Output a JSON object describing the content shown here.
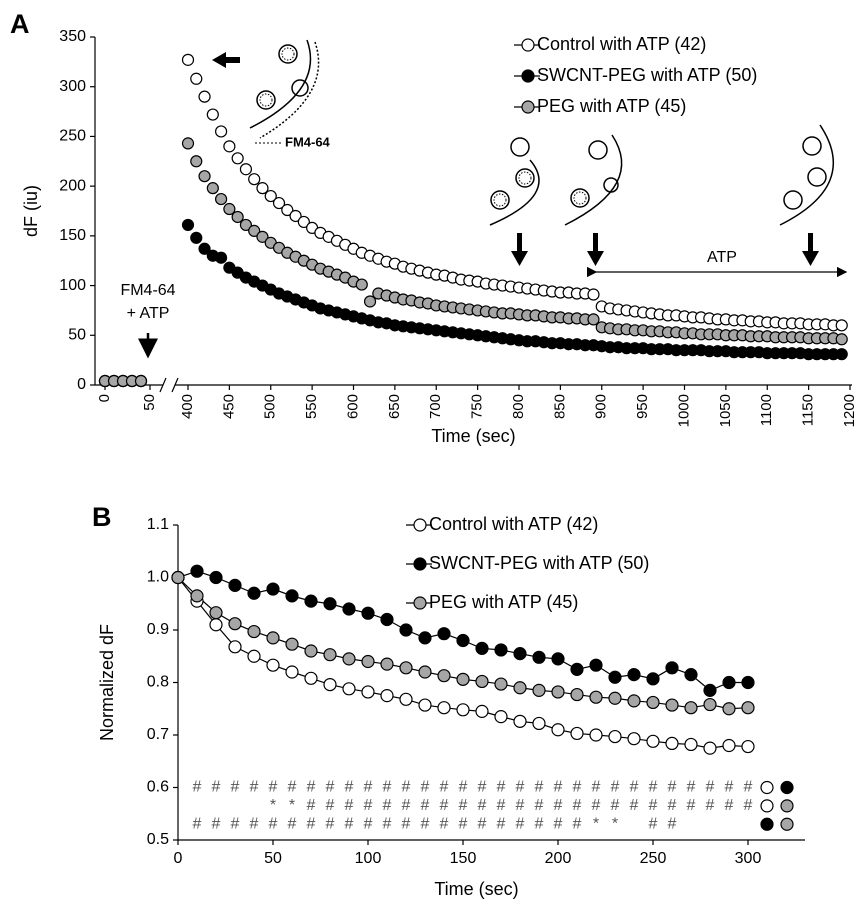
{
  "chart_data": [
    {
      "type": "scatter",
      "panel": "A",
      "xlabel": "Time (sec)",
      "ylabel": "dF (iu)",
      "xlim": [
        0,
        1200
      ],
      "xbreak": [
        50,
        400
      ],
      "xticks": [
        0,
        50,
        400,
        450,
        500,
        550,
        600,
        650,
        700,
        750,
        800,
        850,
        900,
        950,
        1000,
        1050,
        1100,
        1150,
        1200
      ],
      "ylim": [
        0,
        350
      ],
      "yticks": [
        0,
        50,
        100,
        150,
        200,
        250,
        300,
        350
      ],
      "legend": "upper right",
      "lines": false,
      "annotations": [
        "FM4-64",
        [
          "FM4-64",
          "+ ATP"
        ],
        "ATP"
      ],
      "x": [
        0,
        10,
        20,
        30,
        40,
        400,
        410,
        420,
        430,
        440,
        450,
        460,
        470,
        480,
        490,
        500,
        510,
        520,
        530,
        540,
        550,
        560,
        570,
        580,
        590,
        600,
        610,
        620,
        630,
        640,
        650,
        660,
        670,
        680,
        690,
        700,
        710,
        720,
        730,
        740,
        750,
        760,
        770,
        780,
        790,
        800,
        810,
        820,
        830,
        840,
        850,
        860,
        870,
        880,
        890,
        900,
        910,
        920,
        930,
        940,
        950,
        960,
        970,
        980,
        990,
        1000,
        1010,
        1020,
        1030,
        1040,
        1050,
        1060,
        1070,
        1080,
        1090,
        1100,
        1110,
        1120,
        1130,
        1140,
        1150,
        1160,
        1170,
        1180,
        1190
      ],
      "series": [
        {
          "name": "Control with ATP (42)",
          "color": "#ffffff",
          "values": [
            4,
            4,
            4,
            4,
            4,
            327,
            308,
            290,
            272,
            255,
            240,
            228,
            217,
            207,
            198,
            190,
            183,
            176,
            170,
            164,
            158,
            153,
            149,
            145,
            141,
            137,
            133,
            130,
            127,
            124,
            122,
            119,
            117,
            115,
            113,
            111,
            110,
            108,
            106,
            105,
            104,
            102,
            101,
            100,
            99,
            98,
            97,
            96,
            95,
            94,
            93,
            93,
            92,
            92,
            91,
            79,
            77,
            76,
            75,
            74,
            73,
            72,
            71,
            70,
            70,
            69,
            68,
            68,
            67,
            66,
            66,
            65,
            65,
            64,
            64,
            63,
            63,
            62,
            62,
            62,
            61,
            61,
            61,
            60,
            60
          ]
        },
        {
          "name": "SWCNT-PEG with ATP (50)",
          "color": "#000000",
          "values": [
            4,
            4,
            4,
            4,
            4,
            161,
            148,
            137,
            130,
            128,
            118,
            113,
            108,
            104,
            100,
            96,
            92,
            89,
            86,
            83,
            80,
            77,
            75,
            73,
            71,
            69,
            67,
            65,
            63,
            62,
            60,
            59,
            58,
            57,
            56,
            55,
            54,
            53,
            52,
            51,
            50,
            49,
            48,
            47,
            46,
            45,
            44,
            44,
            43,
            42,
            42,
            41,
            41,
            40,
            40,
            39,
            38,
            38,
            37,
            37,
            37,
            36,
            36,
            36,
            35,
            35,
            35,
            35,
            34,
            34,
            34,
            33,
            33,
            33,
            33,
            32,
            32,
            32,
            32,
            32,
            31,
            31,
            31,
            31,
            31
          ]
        },
        {
          "name": "PEG with ATP (45)",
          "color": "#a6a6a6",
          "values": [
            4,
            4,
            4,
            4,
            4,
            243,
            225,
            210,
            198,
            187,
            177,
            169,
            161,
            155,
            149,
            143,
            138,
            133,
            129,
            125,
            121,
            117,
            114,
            111,
            108,
            104,
            101,
            84,
            92,
            90,
            88,
            86,
            85,
            83,
            82,
            80,
            79,
            78,
            77,
            76,
            75,
            74,
            73,
            72,
            72,
            71,
            70,
            70,
            69,
            68,
            68,
            67,
            67,
            66,
            66,
            58,
            57,
            56,
            56,
            55,
            55,
            54,
            54,
            53,
            53,
            52,
            52,
            51,
            51,
            51,
            50,
            50,
            50,
            49,
            49,
            49,
            48,
            48,
            48,
            48,
            47,
            47,
            47,
            47,
            46
          ]
        }
      ]
    },
    {
      "type": "line",
      "panel": "B",
      "xlabel": "Time (sec)",
      "ylabel": "Normalized dF",
      "xlim": [
        0,
        330
      ],
      "xticks": [
        0,
        50,
        100,
        150,
        200,
        250,
        300
      ],
      "ylim": [
        0.5,
        1.1
      ],
      "yticks": [
        0.5,
        0.6,
        0.7,
        0.8,
        0.9,
        {
          "value": 1,
          "label": "1.0"
        },
        1.1
      ],
      "legend": "upper center",
      "lines": true,
      "x": [
        0,
        10,
        20,
        30,
        40,
        50,
        60,
        70,
        80,
        90,
        100,
        110,
        120,
        130,
        140,
        150,
        160,
        170,
        180,
        190,
        200,
        210,
        220,
        230,
        240,
        250,
        260,
        270,
        280,
        290,
        300
      ],
      "series": [
        {
          "name": "Control with ATP (42)",
          "color": "#ffffff",
          "values": [
            1.0,
            0.955,
            0.91,
            0.868,
            0.85,
            0.833,
            0.82,
            0.808,
            0.796,
            0.788,
            0.782,
            0.775,
            0.768,
            0.757,
            0.752,
            0.748,
            0.745,
            0.735,
            0.726,
            0.722,
            0.71,
            0.703,
            0.7,
            0.697,
            0.693,
            0.688,
            0.684,
            0.682,
            0.675,
            0.68,
            0.678
          ]
        },
        {
          "name": "SWCNT-PEG with ATP (50)",
          "color": "#000000",
          "values": [
            1.0,
            1.012,
            1.0,
            0.985,
            0.97,
            0.978,
            0.965,
            0.955,
            0.95,
            0.94,
            0.932,
            0.92,
            0.9,
            0.885,
            0.893,
            0.88,
            0.865,
            0.862,
            0.855,
            0.848,
            0.845,
            0.825,
            0.833,
            0.81,
            0.815,
            0.807,
            0.828,
            0.815,
            0.785,
            0.8,
            0.8
          ]
        },
        {
          "name": "PEG with ATP (45)",
          "color": "#a6a6a6",
          "values": [
            1.0,
            0.965,
            0.933,
            0.912,
            0.897,
            0.885,
            0.873,
            0.86,
            0.853,
            0.845,
            0.84,
            0.835,
            0.828,
            0.82,
            0.813,
            0.806,
            0.802,
            0.797,
            0.79,
            0.785,
            0.782,
            0.777,
            0.772,
            0.77,
            0.765,
            0.762,
            0.757,
            0.752,
            0.758,
            0.75,
            0.752
          ]
        }
      ],
      "significance": [
        {
          "y": 0.6,
          "x": [
            10,
            20,
            30,
            40,
            50,
            60,
            70,
            80,
            90,
            100,
            110,
            120,
            130,
            140,
            150,
            160,
            170,
            180,
            190,
            200,
            210,
            220,
            230,
            240,
            250,
            260,
            270,
            280,
            290,
            300
          ],
          "symbols": [
            "#",
            "#",
            "#",
            "#",
            "#",
            "#",
            "#",
            "#",
            "#",
            "#",
            "#",
            "#",
            "#",
            "#",
            "#",
            "#",
            "#",
            "#",
            "#",
            "#",
            "#",
            "#",
            "#",
            "#",
            "#",
            "#",
            "#",
            "#",
            "#",
            "#"
          ]
        },
        {
          "y": 0.565,
          "x": [
            50,
            60,
            70,
            80,
            90,
            100,
            110,
            120,
            130,
            140,
            150,
            160,
            170,
            180,
            190,
            200,
            210,
            220,
            230,
            240,
            250,
            260,
            270,
            280,
            290,
            300
          ],
          "symbols": [
            "*",
            "*",
            "#",
            "#",
            "#",
            "#",
            "#",
            "#",
            "#",
            "#",
            "#",
            "#",
            "#",
            "#",
            "#",
            "#",
            "#",
            "#",
            "#",
            "#",
            "#",
            "#",
            "#",
            "#",
            "#",
            "#"
          ]
        },
        {
          "y": 0.53,
          "x": [
            10,
            20,
            30,
            40,
            50,
            60,
            70,
            80,
            90,
            100,
            110,
            120,
            130,
            140,
            150,
            160,
            170,
            180,
            190,
            200,
            210,
            220,
            230,
            250,
            260
          ],
          "symbols": [
            "#",
            "#",
            "#",
            "#",
            "#",
            "#",
            "#",
            "#",
            "#",
            "#",
            "#",
            "#",
            "#",
            "#",
            "#",
            "#",
            "#",
            "#",
            "#",
            "#",
            "#",
            "*",
            "*",
            "#",
            "#"
          ]
        }
      ]
    }
  ]
}
